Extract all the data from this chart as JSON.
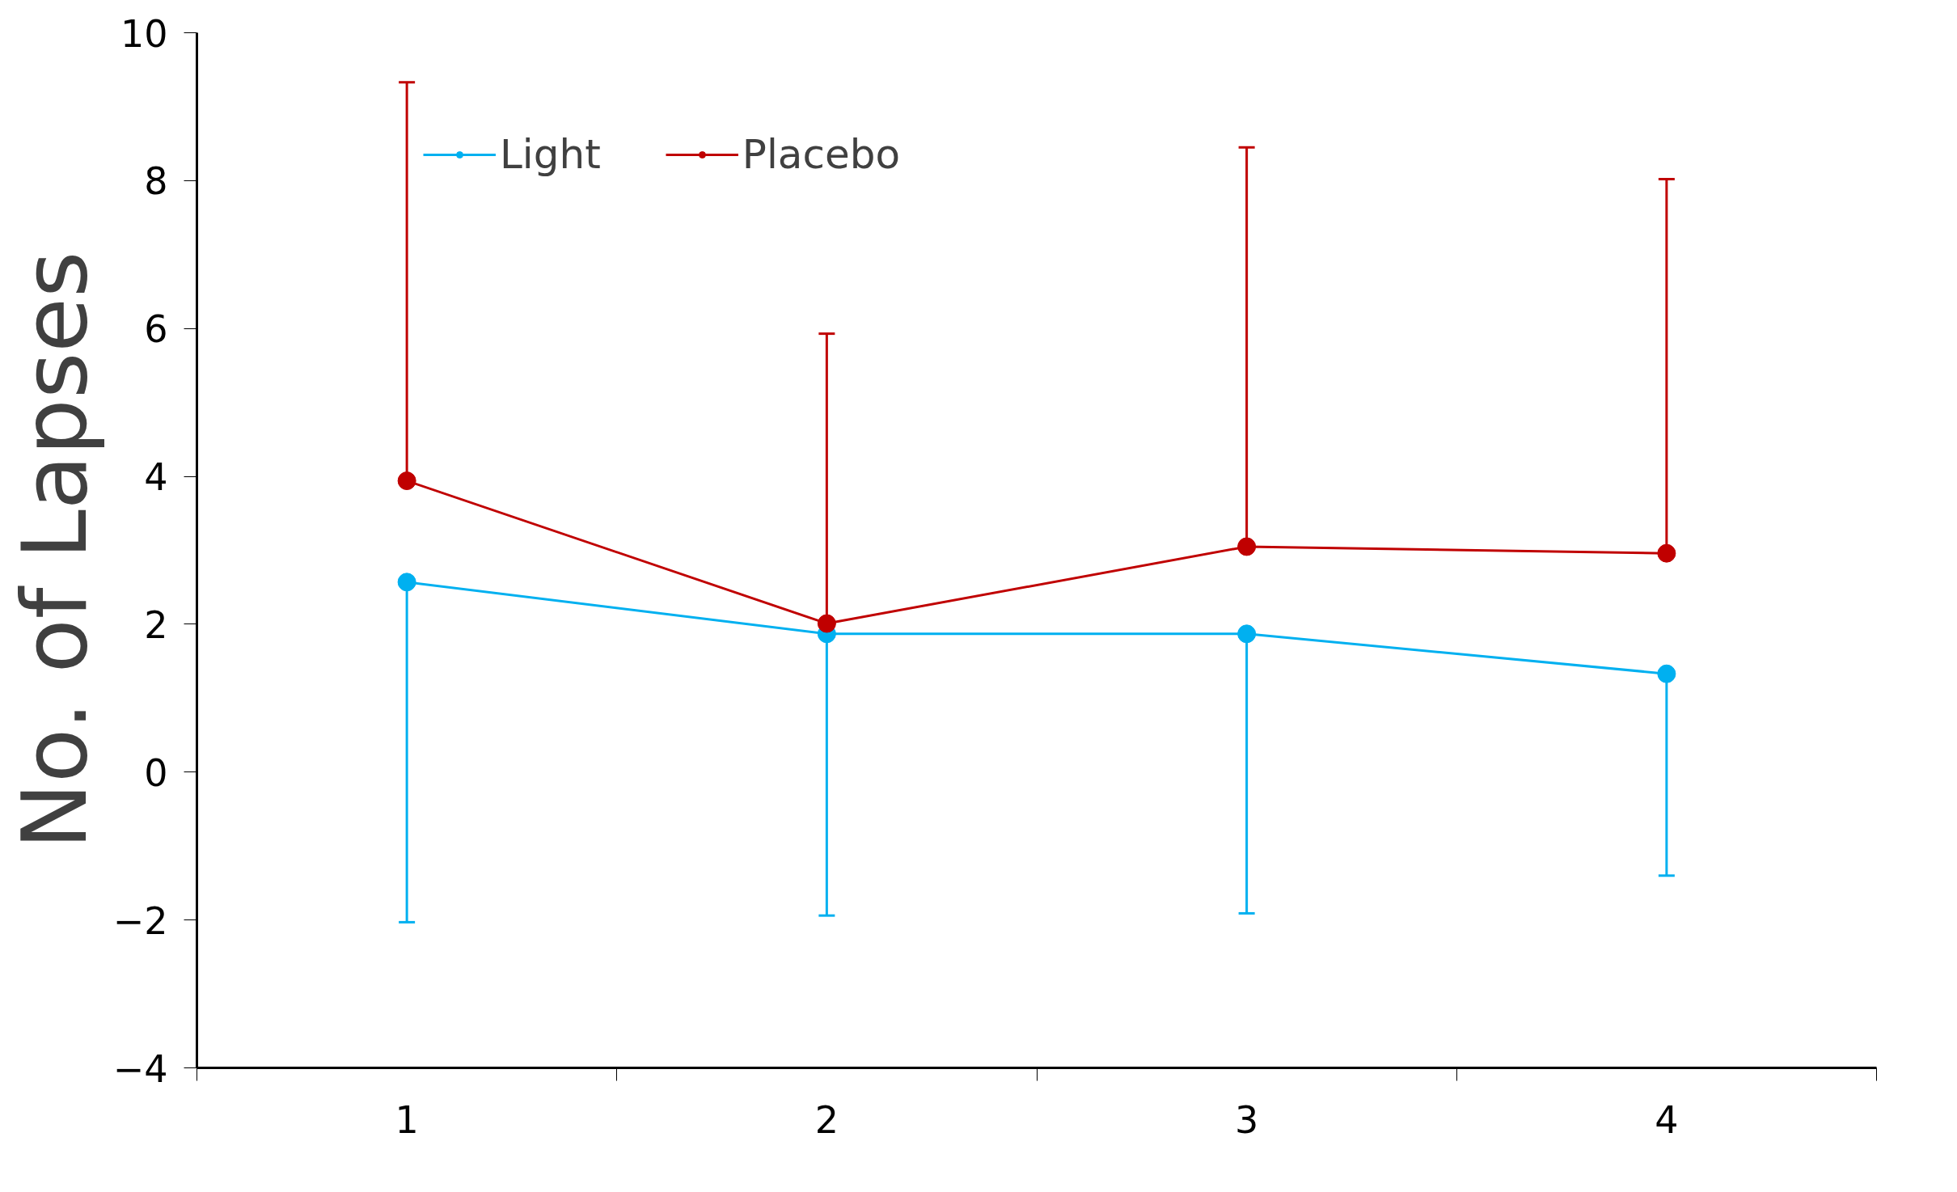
{
  "chart_data": {
    "type": "line",
    "ylabel": "No. of Lapses",
    "categories": [
      "1",
      "2",
      "3",
      "4"
    ],
    "series": [
      {
        "name": "Light",
        "color": "#00b0f0",
        "values": [
          2.57,
          1.87,
          1.87,
          1.33
        ],
        "errors": [
          [
            -2.03,
            2.57
          ],
          [
            -1.94,
            1.87
          ],
          [
            -1.91,
            1.87
          ],
          [
            -1.4,
            1.33
          ]
        ]
      },
      {
        "name": "Placebo",
        "color": "#c00000",
        "values": [
          3.94,
          2.01,
          3.05,
          2.96
        ],
        "errors": [
          [
            3.94,
            9.33
          ],
          [
            2.01,
            5.93
          ],
          [
            3.05,
            8.45
          ],
          [
            2.96,
            8.02
          ]
        ]
      }
    ],
    "ylim": [
      -4,
      10
    ],
    "yticks": [
      -4,
      -2,
      0,
      2,
      4,
      6,
      8,
      10
    ],
    "grid": false,
    "legend": "top left",
    "marker": "circle",
    "line_style": "solid"
  }
}
